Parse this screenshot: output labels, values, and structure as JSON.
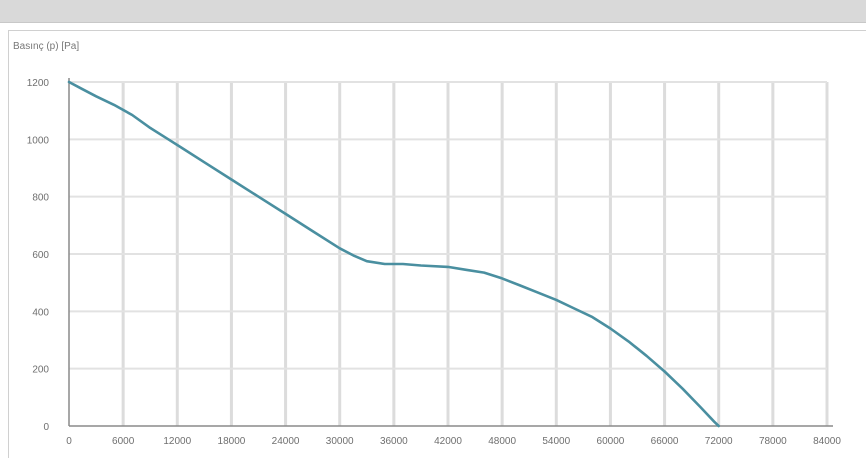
{
  "header": {
    "caption": ""
  },
  "chart_data": {
    "type": "line",
    "title": "",
    "xlabel": "",
    "ylabel": "Basınç (p) [Pa]",
    "xlim": [
      0,
      84000
    ],
    "ylim": [
      0,
      1200
    ],
    "x_ticks": [
      "0",
      "6000",
      "12000",
      "18000",
      "24000",
      "30000",
      "36000",
      "42000",
      "48000",
      "54000",
      "60000",
      "66000",
      "72000",
      "78000",
      "84000"
    ],
    "y_ticks": [
      "0",
      "200",
      "400",
      "600",
      "800",
      "1000",
      "1200"
    ],
    "grid": true,
    "series": [
      {
        "color": "#4a8fa0",
        "points": [
          [
            0,
            1200
          ],
          [
            1500,
            1175
          ],
          [
            3000,
            1150
          ],
          [
            5000,
            1120
          ],
          [
            7000,
            1085
          ],
          [
            9000,
            1040
          ],
          [
            11000,
            1000
          ],
          [
            12500,
            970
          ],
          [
            15000,
            920
          ],
          [
            18000,
            860
          ],
          [
            21000,
            800
          ],
          [
            24000,
            740
          ],
          [
            27000,
            680
          ],
          [
            30000,
            620
          ],
          [
            31500,
            595
          ],
          [
            33000,
            575
          ],
          [
            35000,
            565
          ],
          [
            37000,
            565
          ],
          [
            39000,
            560
          ],
          [
            42000,
            555
          ],
          [
            44000,
            545
          ],
          [
            46000,
            535
          ],
          [
            48000,
            515
          ],
          [
            50000,
            490
          ],
          [
            52000,
            465
          ],
          [
            54000,
            440
          ],
          [
            56000,
            410
          ],
          [
            58000,
            380
          ],
          [
            60000,
            340
          ],
          [
            62000,
            295
          ],
          [
            64000,
            245
          ],
          [
            66000,
            190
          ],
          [
            68000,
            130
          ],
          [
            70000,
            65
          ],
          [
            71500,
            15
          ],
          [
            72000,
            0
          ]
        ]
      }
    ]
  }
}
